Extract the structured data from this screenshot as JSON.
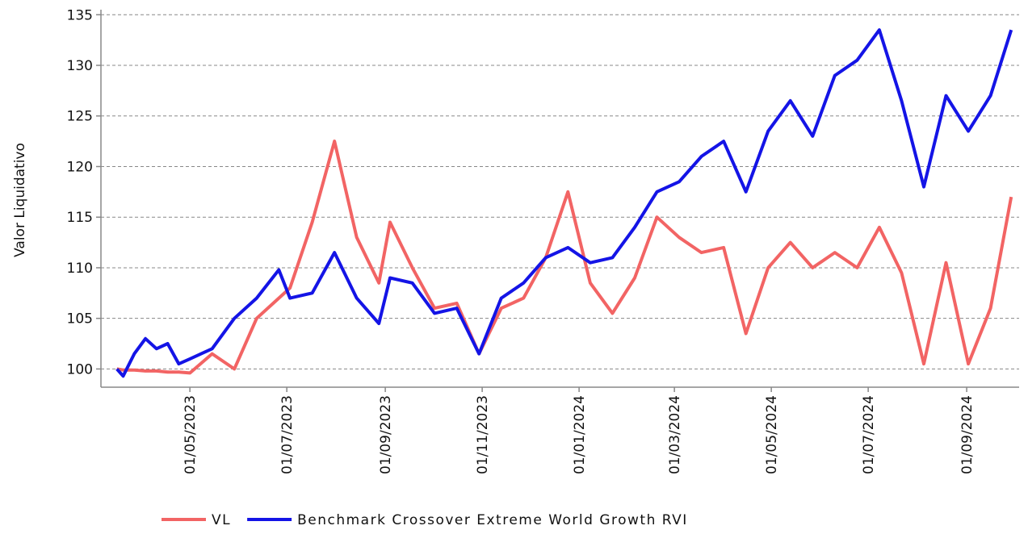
{
  "chart_data": {
    "type": "line",
    "ylabel": "Valor Liquidativo",
    "x": [
      "2023-03-16",
      "2023-03-20",
      "2023-03-27",
      "2023-04-03",
      "2023-04-10",
      "2023-04-17",
      "2023-04-24",
      "2023-05-01",
      "2023-05-15",
      "2023-05-29",
      "2023-06-12",
      "2023-06-26",
      "2023-07-03",
      "2023-07-17",
      "2023-07-31",
      "2023-08-14",
      "2023-08-28",
      "2023-09-04",
      "2023-09-18",
      "2023-10-02",
      "2023-10-16",
      "2023-10-30",
      "2023-11-13",
      "2023-11-27",
      "2023-12-11",
      "2023-12-25",
      "2024-01-08",
      "2024-01-22",
      "2024-02-05",
      "2024-02-19",
      "2024-03-04",
      "2024-03-18",
      "2024-04-01",
      "2024-04-15",
      "2024-04-29",
      "2024-05-13",
      "2024-05-27",
      "2024-06-10",
      "2024-06-24",
      "2024-07-08",
      "2024-07-22",
      "2024-08-05",
      "2024-08-19",
      "2024-09-02",
      "2024-09-16",
      "2024-09-29"
    ],
    "series": [
      {
        "name": "VL",
        "color": "#f26464",
        "values": [
          100,
          99.9,
          99.9,
          99.8,
          99.8,
          99.7,
          99.7,
          99.6,
          101.5,
          100,
          105,
          107,
          108,
          114.5,
          122.5,
          113,
          108.5,
          114.5,
          110,
          106,
          106.5,
          101.5,
          106,
          107,
          111,
          117.5,
          108.5,
          105.5,
          109,
          115,
          113,
          111.5,
          112,
          103.5,
          110,
          112.5,
          110,
          111.5,
          110,
          114,
          109.5,
          100.5,
          110.5,
          100.5,
          106,
          117
        ]
      },
      {
        "name": "Benchmark Crossover Extreme World Growth RVI",
        "color": "#1414e6",
        "values": [
          100,
          99.3,
          101.5,
          103,
          102,
          102.5,
          100.5,
          101,
          102,
          105,
          107,
          109.8,
          107,
          107.5,
          111.5,
          107,
          104.5,
          109,
          108.5,
          105.5,
          106,
          101.5,
          107,
          108.5,
          111,
          112,
          110.5,
          111,
          114,
          117.5,
          118.5,
          121,
          122.5,
          117.5,
          123.5,
          126.5,
          123,
          129,
          130.5,
          133.5,
          126.5,
          118,
          127,
          123.5,
          127,
          133.5
        ]
      }
    ],
    "xlim": [
      "2023-03-06",
      "2024-10-04"
    ],
    "xticks": [
      {
        "value": "2023-05-01",
        "label": "01/05/2023"
      },
      {
        "value": "2023-07-01",
        "label": "01/07/2023"
      },
      {
        "value": "2023-09-01",
        "label": "01/09/2023"
      },
      {
        "value": "2023-11-01",
        "label": "01/11/2023"
      },
      {
        "value": "2024-01-01",
        "label": "01/01/2024"
      },
      {
        "value": "2024-03-01",
        "label": "01/03/2024"
      },
      {
        "value": "2024-05-01",
        "label": "01/05/2024"
      },
      {
        "value": "2024-07-01",
        "label": "01/07/2024"
      },
      {
        "value": "2024-09-01",
        "label": "01/09/2024"
      }
    ],
    "ylim": [
      98.2,
      135.5
    ],
    "yticks": [
      100,
      105,
      110,
      115,
      120,
      125,
      130,
      135
    ],
    "grid": true,
    "legend": "bottom"
  }
}
